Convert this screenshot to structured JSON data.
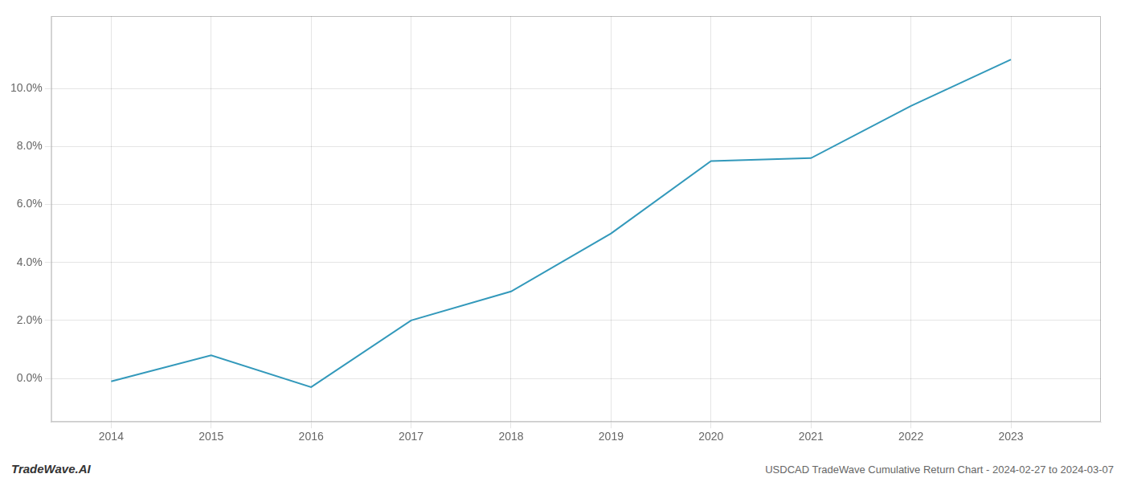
{
  "chart_data": {
    "type": "line",
    "x": [
      2014,
      2015,
      2016,
      2017,
      2018,
      2019,
      2020,
      2021,
      2022,
      2023
    ],
    "values": [
      -0.001,
      0.008,
      -0.003,
      0.02,
      0.03,
      0.05,
      0.075,
      0.076,
      0.094,
      0.11
    ],
    "color": "#3399bb",
    "xlim": [
      2013.4,
      2023.9
    ],
    "xticks": [
      2014,
      2015,
      2016,
      2017,
      2018,
      2019,
      2020,
      2021,
      2022,
      2023
    ],
    "ylim": [
      -0.015,
      0.125
    ],
    "yticks": [
      {
        "value": 0.0,
        "label": "0.0%"
      },
      {
        "value": 0.02,
        "label": "2.0%"
      },
      {
        "value": 0.04,
        "label": "4.0%"
      },
      {
        "value": 0.06,
        "label": "6.0%"
      },
      {
        "value": 0.08,
        "label": "8.0%"
      },
      {
        "value": 0.1,
        "label": "10.0%"
      }
    ],
    "grid": true,
    "annotations": [
      "TradeWave.AI",
      "USDCAD TradeWave Cumulative Return Chart - 2024-02-27 to 2024-03-07"
    ]
  }
}
